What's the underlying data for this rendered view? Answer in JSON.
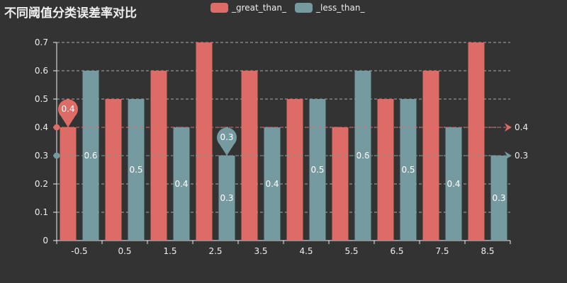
{
  "colors": {
    "background": "#333333",
    "great": "#dd6b66",
    "less": "#759aa0",
    "axis": "#eeeeee",
    "grid": "#aaaaaa"
  },
  "chart_data": {
    "type": "bar",
    "title": "不同阈值分类误差率对比",
    "categories": [
      "-0.5",
      "0.5",
      "1.5",
      "2.5",
      "3.5",
      "4.5",
      "5.5",
      "6.5",
      "7.5",
      "8.5"
    ],
    "series": [
      {
        "name": "_great_than_",
        "values": [
          0.4,
          0.5,
          0.6,
          0.7,
          0.6,
          0.5,
          0.4,
          0.5,
          0.6,
          0.7
        ],
        "mark_point_min": {
          "category": "-0.5",
          "value": 0.4
        },
        "mark_line_value": 0.4,
        "show_labels": false
      },
      {
        "name": "_less_than_",
        "values": [
          0.6,
          0.5,
          0.4,
          0.3,
          0.4,
          0.5,
          0.6,
          0.5,
          0.4,
          0.3
        ],
        "mark_point_min": {
          "category": "2.5",
          "value": 0.3
        },
        "mark_line_value": 0.3,
        "show_labels": true
      }
    ],
    "ylim": [
      0,
      0.7
    ],
    "yticks": [
      0,
      0.1,
      0.2,
      0.3,
      0.4,
      0.5,
      0.6,
      0.7
    ],
    "grid": true,
    "legend_position": "top-center"
  }
}
